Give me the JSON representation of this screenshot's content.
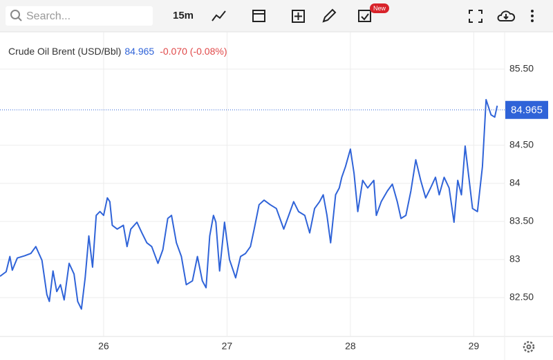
{
  "toolbar": {
    "search_placeholder": "Search...",
    "interval": "15m",
    "badge": "New"
  },
  "chart_data": {
    "type": "line",
    "x": [
      25.16,
      25.21,
      25.24,
      25.26,
      25.3,
      25.36,
      25.41,
      25.45,
      25.5,
      25.54,
      25.56,
      25.59,
      25.62,
      25.65,
      25.68,
      25.72,
      25.76,
      25.79,
      25.82,
      25.85,
      25.88,
      25.91,
      25.94,
      25.97,
      26.0,
      26.03,
      26.05,
      26.07,
      26.11,
      26.16,
      26.19,
      26.22,
      26.27,
      26.31,
      26.35,
      26.39,
      26.44,
      26.48,
      26.52,
      26.55,
      26.59,
      26.63,
      26.67,
      26.72,
      26.76,
      26.8,
      26.83,
      26.86,
      26.89,
      26.91,
      26.94,
      26.98,
      27.02,
      27.07,
      27.11,
      27.15,
      27.19,
      27.22,
      27.26,
      27.3,
      27.35,
      27.4,
      27.46,
      27.5,
      27.54,
      27.58,
      27.63,
      27.67,
      27.71,
      27.75,
      27.78,
      27.81,
      27.84,
      27.88,
      27.91,
      27.93,
      27.96,
      28.0,
      28.03,
      28.06,
      28.1,
      28.14,
      28.19,
      28.21,
      28.25,
      28.3,
      28.34,
      28.38,
      28.41,
      28.45,
      28.49,
      28.53,
      28.57,
      28.61,
      28.65,
      28.69,
      28.72,
      28.76,
      28.8,
      28.84,
      28.87,
      28.9,
      28.93,
      28.99,
      29.03,
      29.07,
      29.1,
      29.14,
      29.17,
      29.19
    ],
    "series": [
      {
        "name": "Crude Oil Brent (USD/Bbl)",
        "color": "#2f63d8",
        "values": [
          82.78,
          82.84,
          83.04,
          82.86,
          83.02,
          83.05,
          83.08,
          83.17,
          82.99,
          82.54,
          82.45,
          82.85,
          82.58,
          82.67,
          82.47,
          82.95,
          82.81,
          82.45,
          82.35,
          82.76,
          83.31,
          82.9,
          83.58,
          83.63,
          83.58,
          83.81,
          83.76,
          83.45,
          83.4,
          83.45,
          83.17,
          83.4,
          83.49,
          83.35,
          83.22,
          83.17,
          82.95,
          83.13,
          83.54,
          83.58,
          83.22,
          83.04,
          82.67,
          82.72,
          83.04,
          82.72,
          82.63,
          83.31,
          83.58,
          83.49,
          82.85,
          83.49,
          83.0,
          82.76,
          83.04,
          83.08,
          83.17,
          83.4,
          83.72,
          83.78,
          83.72,
          83.67,
          83.4,
          83.58,
          83.76,
          83.63,
          83.58,
          83.35,
          83.67,
          83.76,
          83.85,
          83.58,
          83.22,
          83.85,
          83.94,
          84.08,
          84.22,
          84.45,
          84.13,
          83.63,
          84.04,
          83.94,
          84.04,
          83.58,
          83.76,
          83.9,
          83.99,
          83.76,
          83.54,
          83.58,
          83.9,
          84.31,
          84.04,
          83.81,
          83.94,
          84.08,
          83.85,
          84.08,
          83.94,
          83.49,
          84.04,
          83.85,
          84.49,
          83.67,
          83.63,
          84.22,
          85.1,
          84.9,
          84.87,
          85.02
        ]
      }
    ],
    "last": 84.965,
    "change": "-0.070 (-0.08%)",
    "xlim": [
      25.16,
      29.25
    ],
    "xticks": [
      26,
      27,
      28,
      29
    ],
    "ylim": [
      81.99,
      85.99
    ],
    "yticks": [
      {
        "value": 82.5,
        "label": "82.50"
      },
      83,
      {
        "value": 83.5,
        "label": "83.50"
      },
      84,
      {
        "value": 84.5,
        "label": "84.50"
      },
      {
        "value": 85.5,
        "label": "85.50"
      }
    ],
    "grid": true
  }
}
